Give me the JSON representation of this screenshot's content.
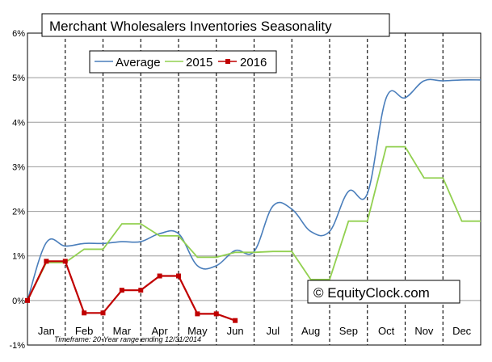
{
  "chart_data": {
    "type": "line",
    "title": "Merchant Wholesalers Inventories Seasonality",
    "xlabel": "",
    "ylabel": "",
    "categories": [
      "Jan",
      "Feb",
      "Mar",
      "Apr",
      "May",
      "Jun",
      "Jul",
      "Aug",
      "Sep",
      "Oct",
      "Nov",
      "Dec"
    ],
    "y_ticks": [
      "6%",
      "5%",
      "4%",
      "3%",
      "2%",
      "1%",
      "0%",
      "-1%"
    ],
    "ylim": [
      -1,
      6
    ],
    "xlim": [
      0,
      12
    ],
    "grid": true,
    "legend_position": "top",
    "series": [
      {
        "name": "Average",
        "color": "#4a7ebb",
        "style": "smooth",
        "points": [
          [
            0,
            0
          ],
          [
            0.5,
            1.3
          ],
          [
            1,
            1.22
          ],
          [
            1.5,
            1.28
          ],
          [
            2,
            1.28
          ],
          [
            2.5,
            1.32
          ],
          [
            3,
            1.32
          ],
          [
            3.5,
            1.5
          ],
          [
            4,
            1.5
          ],
          [
            4.5,
            0.78
          ],
          [
            5,
            0.78
          ],
          [
            5.5,
            1.12
          ],
          [
            6,
            1.1
          ],
          [
            6.5,
            2.12
          ],
          [
            7,
            2.05
          ],
          [
            7.5,
            1.55
          ],
          [
            8,
            1.55
          ],
          [
            8.5,
            2.45
          ],
          [
            9,
            2.4
          ],
          [
            9.5,
            4.55
          ],
          [
            10,
            4.55
          ],
          [
            10.5,
            4.93
          ],
          [
            11,
            4.93
          ],
          [
            11.5,
            4.95
          ],
          [
            12,
            4.95
          ]
        ]
      },
      {
        "name": "2015",
        "color": "#92d050",
        "style": "linear",
        "points": [
          [
            0,
            0
          ],
          [
            0.5,
            0.85
          ],
          [
            1,
            0.85
          ],
          [
            1.5,
            1.15
          ],
          [
            2,
            1.15
          ],
          [
            2.5,
            1.72
          ],
          [
            3,
            1.72
          ],
          [
            3.5,
            1.45
          ],
          [
            4,
            1.45
          ],
          [
            4.5,
            0.97
          ],
          [
            5,
            0.97
          ],
          [
            5.5,
            1.08
          ],
          [
            6,
            1.08
          ],
          [
            6.5,
            1.1
          ],
          [
            7,
            1.1
          ],
          [
            7.5,
            0.47
          ],
          [
            8,
            0.47
          ],
          [
            8.5,
            1.78
          ],
          [
            9,
            1.78
          ],
          [
            9.5,
            3.45
          ],
          [
            10,
            3.45
          ],
          [
            10.5,
            2.75
          ],
          [
            11,
            2.75
          ],
          [
            11.5,
            1.78
          ],
          [
            12,
            1.78
          ]
        ]
      },
      {
        "name": "2016",
        "color": "#c00000",
        "style": "markers",
        "points": [
          [
            0,
            0
          ],
          [
            0.5,
            0.88
          ],
          [
            1,
            0.88
          ],
          [
            1.5,
            -0.28
          ],
          [
            2,
            -0.28
          ],
          [
            2.5,
            0.23
          ],
          [
            3,
            0.23
          ],
          [
            3.5,
            0.55
          ],
          [
            4,
            0.55
          ],
          [
            4.5,
            -0.3
          ],
          [
            5,
            -0.3
          ],
          [
            5.5,
            -0.45
          ]
        ]
      }
    ],
    "watermark": "© EquityClock.com",
    "timeframe_note": "Timeframe: 20-Year range ending 12/31/2014"
  }
}
